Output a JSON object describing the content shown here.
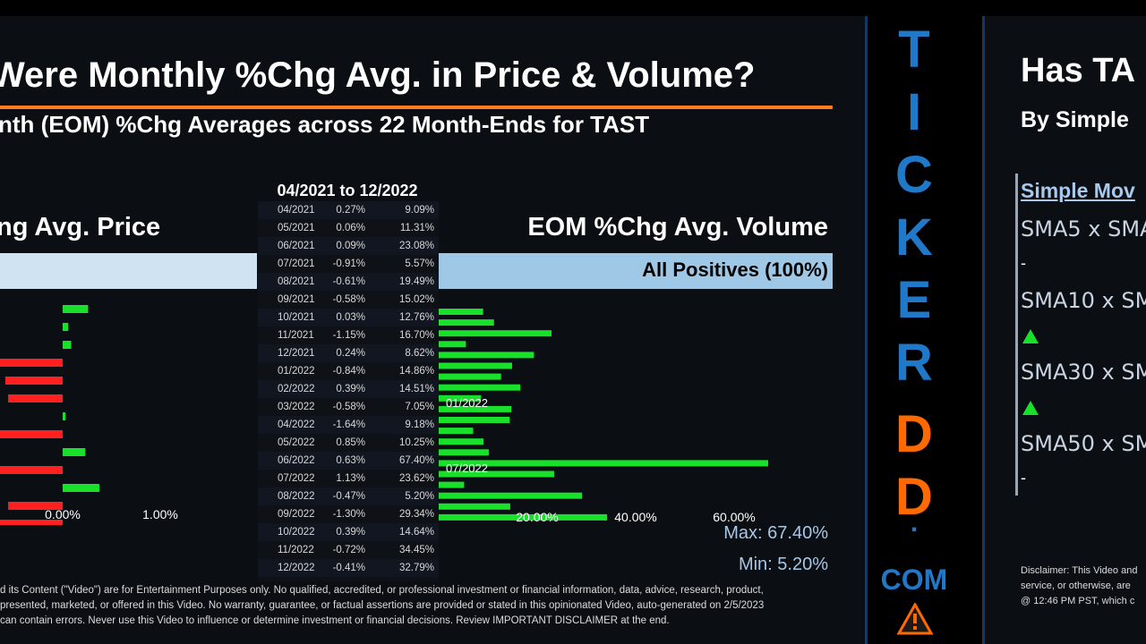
{
  "left": {
    "title": "Were Monthly %Chg Avg. in Price & Volume?",
    "subtitle": "nth (EOM) %Chg Averages across 22 Month-Ends for TAST",
    "price_header": "ng Avg. Price",
    "volume_header": "EOM %Chg Avg. Volume",
    "date_range": "04/2021 to 12/2022",
    "volume_band_label": "All Positives (100%)",
    "max_label": "Max: 67.40%",
    "min_label": "Min: 5.20%",
    "disclaimer": [
      "d its Content (\"Video\") are for Entertainment Purposes only. No qualified, accredited, or professional investment or financial information, data, advice, research, product,",
      "presented, marketed, or offered in this Video. No warranty, guarantee, or factual assertions are provided or stated in this opinionated Video, auto-generated on 2/5/2023",
      "can contain errors. Never use this Video to influence or determine investment or financial decisions. Review IMPORTANT DISCLAIMER at the end."
    ]
  },
  "chart_data": [
    {
      "type": "bar",
      "title": "EOM %Chg Avg. Price",
      "categories": [
        "04/2021",
        "05/2021",
        "06/2021",
        "07/2021",
        "08/2021",
        "09/2021",
        "10/2021",
        "11/2021",
        "12/2021",
        "01/2022",
        "02/2022",
        "03/2022",
        "04/2022",
        "05/2022",
        "06/2022",
        "07/2022",
        "08/2022",
        "09/2022",
        "10/2022",
        "11/2022",
        "12/2022"
      ],
      "values": [
        0.27,
        0.06,
        0.09,
        -0.91,
        -0.61,
        -0.58,
        0.03,
        -1.15,
        0.24,
        -0.84,
        0.39,
        -0.58,
        -1.64,
        0.85,
        0.63,
        1.13,
        -0.47,
        -1.3,
        0.39,
        -0.72,
        -0.41
      ],
      "tick_labels": [
        "0.00%",
        "1.00%"
      ],
      "colors": {
        "positive": "#19e02b",
        "negative": "#ff2020"
      }
    },
    {
      "type": "bar",
      "title": "EOM %Chg Avg. Volume",
      "categories": [
        "04/2021",
        "05/2021",
        "06/2021",
        "07/2021",
        "08/2021",
        "09/2021",
        "10/2021",
        "11/2021",
        "12/2021",
        "01/2022",
        "02/2022",
        "03/2022",
        "04/2022",
        "05/2022",
        "06/2022",
        "07/2022",
        "08/2022",
        "09/2022",
        "10/2022",
        "11/2022",
        "12/2022"
      ],
      "values": [
        9.09,
        11.31,
        23.08,
        5.57,
        19.49,
        15.02,
        12.76,
        16.7,
        8.62,
        14.86,
        14.51,
        7.05,
        9.18,
        10.25,
        67.4,
        23.62,
        5.2,
        29.34,
        14.64,
        34.45,
        32.79
      ],
      "tick_labels": [
        "20.00%",
        "40.00%",
        "60.00%"
      ],
      "annotations": [
        "01/2022",
        "07/2022"
      ],
      "colors": {
        "positive": "#19e02b"
      }
    }
  ],
  "table": {
    "rows": [
      {
        "date": "04/2021",
        "price": "0.27%",
        "volume": "9.09%"
      },
      {
        "date": "05/2021",
        "price": "0.06%",
        "volume": "11.31%"
      },
      {
        "date": "06/2021",
        "price": "0.09%",
        "volume": "23.08%"
      },
      {
        "date": "07/2021",
        "price": "-0.91%",
        "volume": "5.57%"
      },
      {
        "date": "08/2021",
        "price": "-0.61%",
        "volume": "19.49%"
      },
      {
        "date": "09/2021",
        "price": "-0.58%",
        "volume": "15.02%"
      },
      {
        "date": "10/2021",
        "price": "0.03%",
        "volume": "12.76%"
      },
      {
        "date": "11/2021",
        "price": "-1.15%",
        "volume": "16.70%"
      },
      {
        "date": "12/2021",
        "price": "0.24%",
        "volume": "8.62%"
      },
      {
        "date": "01/2022",
        "price": "-0.84%",
        "volume": "14.86%"
      },
      {
        "date": "02/2022",
        "price": "0.39%",
        "volume": "14.51%"
      },
      {
        "date": "03/2022",
        "price": "-0.58%",
        "volume": "7.05%"
      },
      {
        "date": "04/2022",
        "price": "-1.64%",
        "volume": "9.18%"
      },
      {
        "date": "05/2022",
        "price": "0.85%",
        "volume": "10.25%"
      },
      {
        "date": "06/2022",
        "price": "0.63%",
        "volume": "67.40%"
      },
      {
        "date": "07/2022",
        "price": "1.13%",
        "volume": "23.62%"
      },
      {
        "date": "08/2022",
        "price": "-0.47%",
        "volume": "5.20%"
      },
      {
        "date": "09/2022",
        "price": "-1.30%",
        "volume": "29.34%"
      },
      {
        "date": "10/2022",
        "price": "0.39%",
        "volume": "14.64%"
      },
      {
        "date": "11/2022",
        "price": "-0.72%",
        "volume": "34.45%"
      },
      {
        "date": "12/2022",
        "price": "-0.41%",
        "volume": "32.79%"
      }
    ]
  },
  "brand": {
    "letters": [
      "T",
      "I",
      "C",
      "K",
      "E",
      "R",
      "D",
      "D",
      "."
    ],
    "colors": [
      "#1f78c8",
      "#1f78c8",
      "#1f78c8",
      "#1f78c8",
      "#1f78c8",
      "#1f78c8",
      "#ff6a00",
      "#ff6a00",
      "#1f78c8"
    ],
    "suffix": "COM",
    "logo_icon": "warning-triangle-icon"
  },
  "right": {
    "title": "Has TA",
    "subtitle": "By Simple",
    "list_header": "Simple Mov",
    "items": [
      {
        "label": "SMA5 x SMA",
        "value": "-"
      },
      {
        "label": "SMA10 x SM",
        "value": "up-arrow"
      },
      {
        "label": "SMA30 x SM",
        "value": "up-arrow"
      },
      {
        "label": "SMA50 x SM",
        "value": "-"
      }
    ],
    "disclaimer": [
      "Disclaimer: This Video and",
      "service, or otherwise, are",
      "@ 12:46 PM PST, which c"
    ]
  }
}
